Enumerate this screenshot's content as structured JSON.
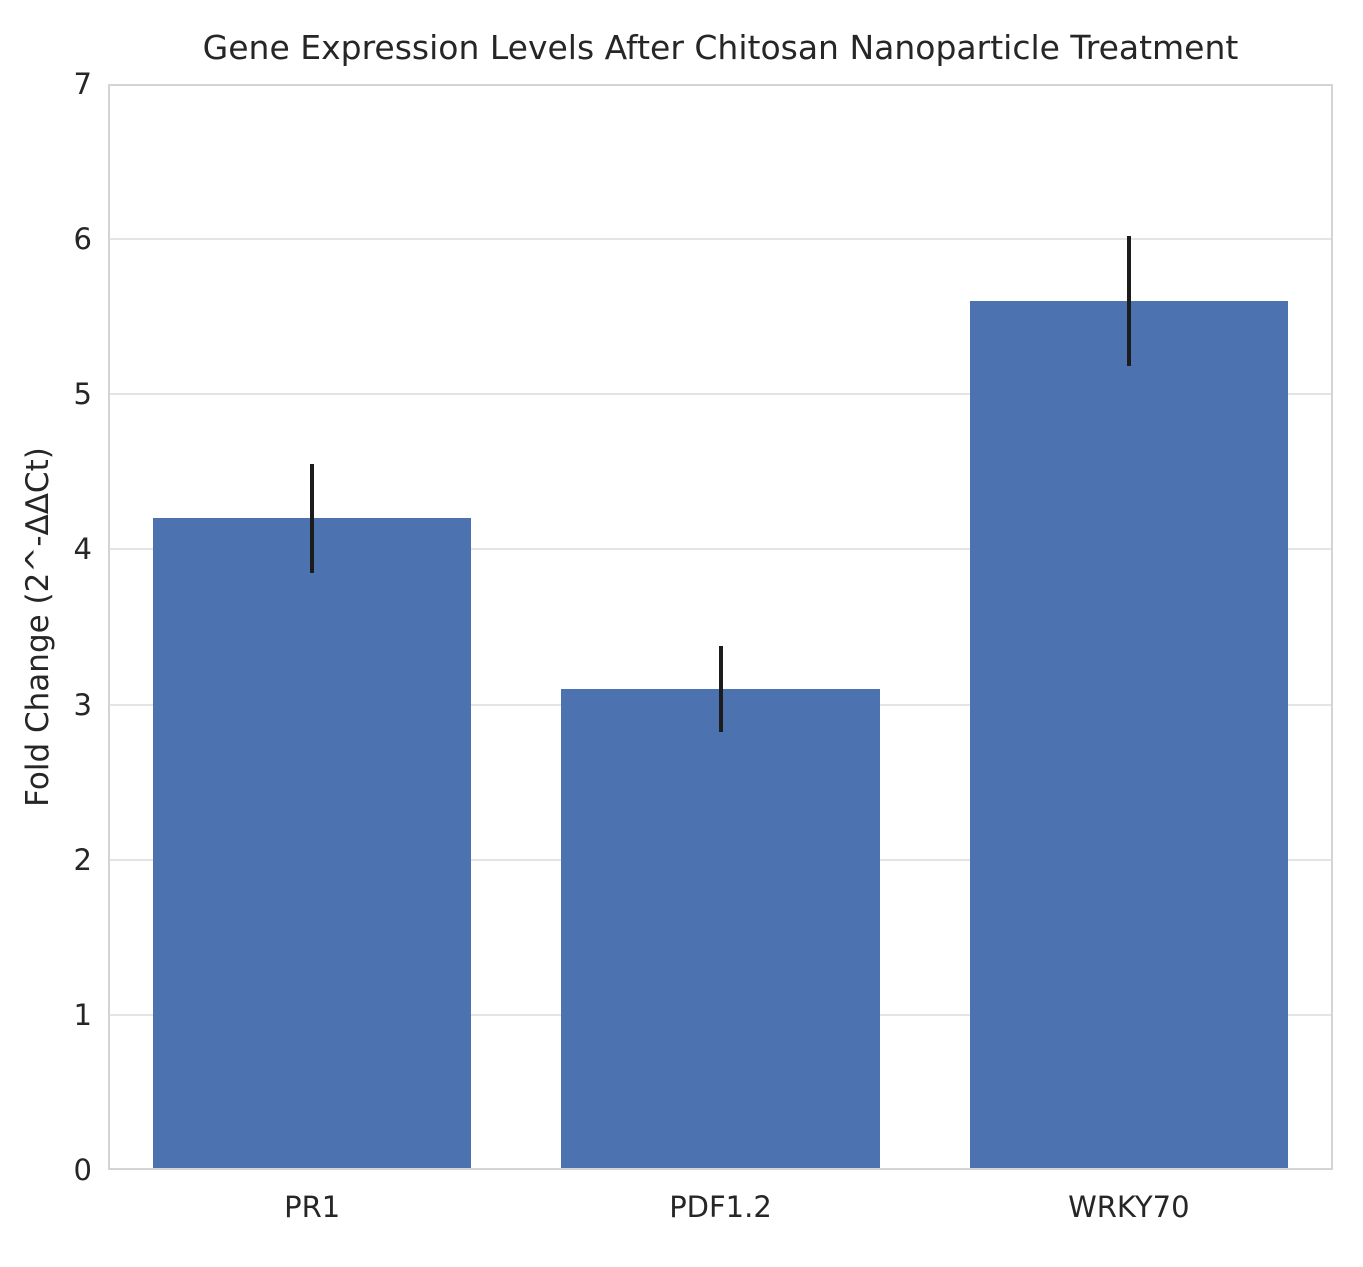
{
  "chart_data": {
    "type": "bar",
    "title": "Gene Expression Levels After Chitosan Nanoparticle Treatment",
    "ylabel": "Fold Change (2^-ΔΔCt)",
    "xlabel": "",
    "categories": [
      "PR1",
      "PDF1.2",
      "WRKY70"
    ],
    "values": [
      4.2,
      3.1,
      5.6
    ],
    "errors": [
      0.35,
      0.28,
      0.42
    ],
    "ylim": [
      0,
      7
    ],
    "yticks": [
      0,
      1,
      2,
      3,
      4,
      5,
      6,
      7
    ],
    "grid": true,
    "legend_position": "none",
    "colors": {
      "bar": "#4C72B0",
      "error_bar": "#1c1c1c",
      "grid_line": "#e4e4e4",
      "axes_edge": "#d4d4d4",
      "text": "#262626",
      "background": "#ffffff"
    }
  }
}
